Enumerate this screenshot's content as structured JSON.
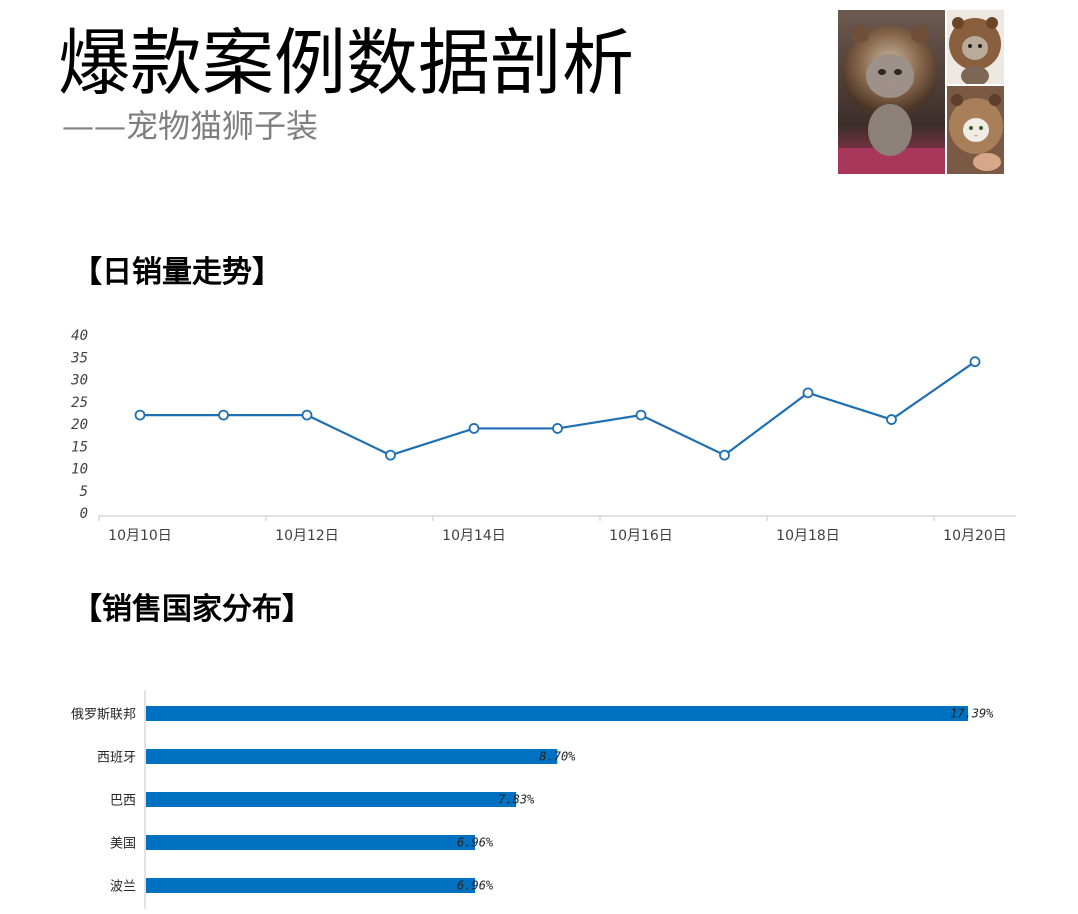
{
  "page": {
    "title": "爆款案例数据剖析",
    "subtitle": "——宠物猫狮子装"
  },
  "images": [
    {
      "name": "cat-lion-costume-photo-main"
    },
    {
      "name": "cat-lion-costume-photo-top"
    },
    {
      "name": "cat-lion-costume-photo-bottom"
    }
  ],
  "sections": {
    "daily_sales": "【日销量走势】",
    "country_distribution": "【销售国家分布】"
  },
  "colors": {
    "accent": "#1f6fb2",
    "bar": "#0070c0",
    "axis": "#d9d9d9",
    "gray_text": "#7f7f7f"
  },
  "chart_data": [
    {
      "type": "line",
      "x": [
        "10月10日",
        "10月11日",
        "10月12日",
        "10月13日",
        "10月14日",
        "10月15日",
        "10月16日",
        "10月17日",
        "10月18日",
        "10月19日",
        "10月20日"
      ],
      "x_tick_labels": [
        "10月10日",
        "10月12日",
        "10月14日",
        "10月16日",
        "10月18日",
        "10月20日"
      ],
      "series": [
        {
          "values": [
            22,
            22,
            22,
            13,
            19,
            19,
            22,
            13,
            27,
            21,
            34
          ]
        }
      ],
      "ylim": [
        0,
        40
      ],
      "yticks": [
        0,
        5,
        10,
        15,
        20,
        25,
        30,
        35,
        40
      ],
      "grid": false,
      "markers": true,
      "legend": "none"
    },
    {
      "type": "bar",
      "orientation": "horizontal",
      "categories": [
        "俄罗斯联邦",
        "西班牙",
        "巴西",
        "美国",
        "波兰"
      ],
      "values": [
        17.39,
        8.7,
        7.83,
        6.96,
        6.96
      ],
      "labels": [
        "17.39%",
        "8.70%",
        "7.83%",
        "6.96%",
        "6.96%"
      ],
      "unit": "%",
      "xlim": [
        0,
        17.6
      ],
      "grid": false,
      "legend": "none"
    }
  ]
}
